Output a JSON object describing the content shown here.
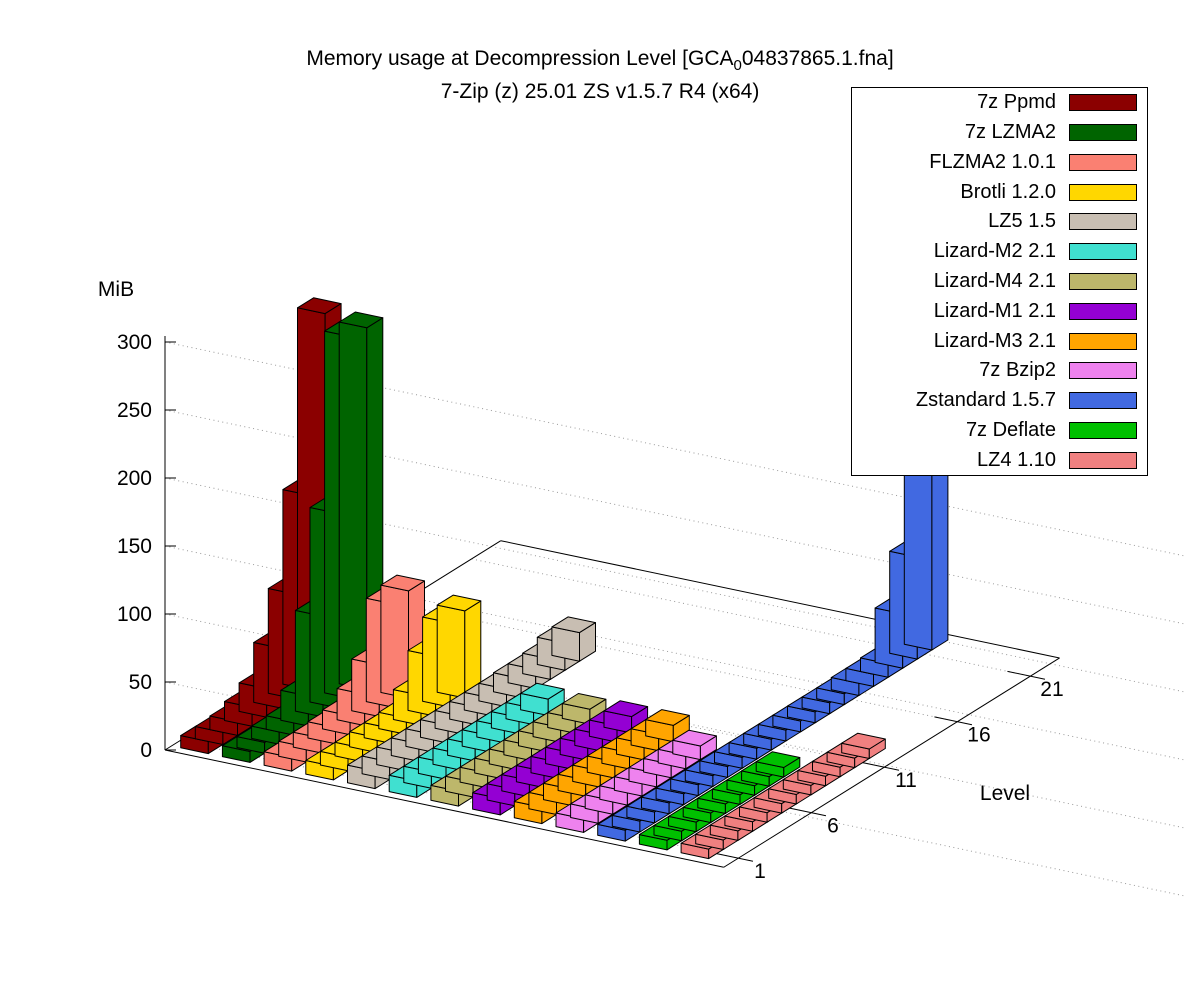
{
  "title": {
    "prefix": "Memory usage at Decompression Level [GCA",
    "subscript": "0",
    "suffix": "04837865.1.fna]"
  },
  "subtitle": "7-Zip (z) 25.01 ZS v1.5.7 R4 (x64)",
  "chart_data": {
    "type": "bar3d",
    "xlabel": "Level",
    "zlabel": "MiB",
    "x_ticks": [
      1,
      6,
      11,
      16,
      21
    ],
    "z_ticks": [
      0,
      50,
      100,
      150,
      200,
      250,
      300
    ],
    "zlim": [
      0,
      300
    ],
    "x_range": [
      0,
      23
    ],
    "grid": "dotted",
    "legend_position": "top-right",
    "series": [
      {
        "name": "7z Ppmd",
        "color": "#8b0000",
        "levels_start": 1,
        "values": [
          9,
          9,
          10,
          14,
          21,
          44,
          77,
          143,
          270
        ]
      },
      {
        "name": "7z LZMA2",
        "color": "#006400",
        "levels_start": 1,
        "values": [
          8,
          8,
          9,
          10,
          22,
          74,
          143,
          266,
          266
        ]
      },
      {
        "name": "FLZMA2 1.0.1",
        "color": "#fa8072",
        "levels_start": 1,
        "values": [
          10,
          11,
          11,
          12,
          14,
          23,
          38,
          76,
          79
        ]
      },
      {
        "name": "Brotli 1.2.0",
        "color": "#ffd700",
        "levels_start": 1,
        "values": [
          10,
          10,
          10,
          11,
          11,
          12,
          22,
          44,
          62,
          64
        ]
      },
      {
        "name": "LZ5 1.5",
        "color": "#c8beb2",
        "levels_start": 1,
        "values": [
          13,
          13,
          13,
          13,
          13,
          13,
          13,
          13,
          13,
          13,
          14,
          14,
          15,
          20,
          21
        ]
      },
      {
        "name": "Lizard-M2 2.1",
        "color": "#40e0d0",
        "levels_start": 1,
        "values": [
          12,
          12,
          12,
          12,
          12,
          12,
          12,
          12,
          12,
          12
        ]
      },
      {
        "name": "Lizard-M4 2.1",
        "color": "#bdb76b",
        "levels_start": 1,
        "values": [
          11,
          11,
          11,
          11,
          11,
          11,
          11,
          11,
          11,
          11
        ]
      },
      {
        "name": "Lizard-M1 2.1",
        "color": "#9400d3",
        "levels_start": 1,
        "values": [
          12,
          12,
          12,
          12,
          12,
          12,
          12,
          12,
          12,
          12
        ]
      },
      {
        "name": "Lizard-M3 2.1",
        "color": "#ffa500",
        "levels_start": 1,
        "values": [
          12,
          12,
          12,
          12,
          12,
          12,
          12,
          12,
          12,
          12
        ]
      },
      {
        "name": "7z Bzip2",
        "color": "#ee82ee",
        "levels_start": 1,
        "values": [
          10,
          10,
          10,
          10,
          10,
          10,
          10,
          10,
          10
        ]
      },
      {
        "name": "Zstandard 1.5.7",
        "color": "#4169e1",
        "levels_start": 1,
        "values": [
          8,
          8,
          8,
          8,
          8,
          8,
          8,
          8,
          8,
          8,
          8,
          8,
          8,
          8,
          8,
          8,
          9,
          9,
          10,
          40,
          75,
          139
        ]
      },
      {
        "name": "7z Deflate",
        "color": "#00c000",
        "levels_start": 1,
        "values": [
          7,
          7,
          7,
          7,
          7,
          7,
          7,
          7,
          7
        ]
      },
      {
        "name": "LZ4 1.10",
        "color": "#f08080",
        "levels_start": 1,
        "values": [
          7,
          7,
          7,
          7,
          7,
          7,
          7,
          7,
          7,
          7,
          7,
          7
        ]
      }
    ]
  }
}
